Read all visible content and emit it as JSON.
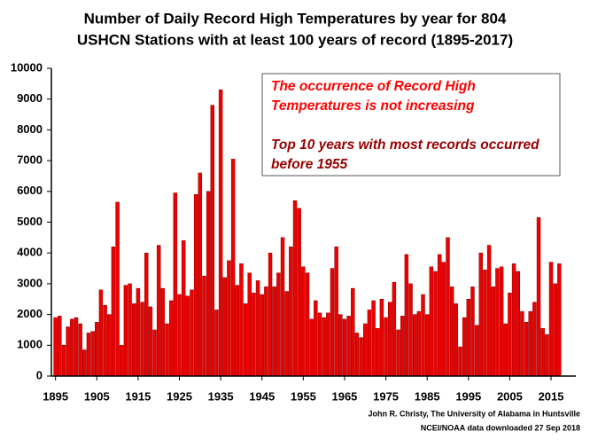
{
  "chart_data": {
    "type": "bar",
    "title": [
      "Number of Daily Record High Temperatures by year for 804",
      "USHCN Stations with at least 100 years of record (1895-2017)"
    ],
    "x": [
      1895,
      1896,
      1897,
      1898,
      1899,
      1900,
      1901,
      1902,
      1903,
      1904,
      1905,
      1906,
      1907,
      1908,
      1909,
      1910,
      1911,
      1912,
      1913,
      1914,
      1915,
      1916,
      1917,
      1918,
      1919,
      1920,
      1921,
      1922,
      1923,
      1924,
      1925,
      1926,
      1927,
      1928,
      1929,
      1930,
      1931,
      1932,
      1933,
      1934,
      1935,
      1936,
      1937,
      1938,
      1939,
      1940,
      1941,
      1942,
      1943,
      1944,
      1945,
      1946,
      1947,
      1948,
      1949,
      1950,
      1951,
      1952,
      1953,
      1954,
      1955,
      1956,
      1957,
      1958,
      1959,
      1960,
      1961,
      1962,
      1963,
      1964,
      1965,
      1966,
      1967,
      1968,
      1969,
      1970,
      1971,
      1972,
      1973,
      1974,
      1975,
      1976,
      1977,
      1978,
      1979,
      1980,
      1981,
      1982,
      1983,
      1984,
      1985,
      1986,
      1987,
      1988,
      1989,
      1990,
      1991,
      1992,
      1993,
      1994,
      1995,
      1996,
      1997,
      1998,
      1999,
      2000,
      2001,
      2002,
      2003,
      2004,
      2005,
      2006,
      2007,
      2008,
      2009,
      2010,
      2011,
      2012,
      2013,
      2014,
      2015,
      2016,
      2017
    ],
    "values": [
      1900,
      1950,
      1000,
      1600,
      1850,
      1900,
      1700,
      850,
      1400,
      1450,
      1750,
      2800,
      2300,
      2000,
      4200,
      5650,
      1000,
      2950,
      3000,
      2350,
      2850,
      2400,
      4000,
      2250,
      1500,
      4250,
      2850,
      1700,
      2450,
      5950,
      2650,
      4400,
      2600,
      2800,
      5900,
      6600,
      3250,
      6000,
      8800,
      2150,
      9300,
      3200,
      3750,
      7050,
      2950,
      3650,
      2350,
      3350,
      2700,
      3100,
      2650,
      2900,
      4000,
      2900,
      3350,
      4500,
      2750,
      4200,
      5700,
      5450,
      3550,
      3350,
      1850,
      2450,
      2050,
      1900,
      2050,
      3500,
      4200,
      2000,
      1850,
      1950,
      2850,
      1400,
      1250,
      1700,
      2150,
      2450,
      1550,
      2500,
      1900,
      2400,
      3050,
      1500,
      1950,
      3950,
      3000,
      2000,
      2100,
      2650,
      2000,
      3550,
      3400,
      3950,
      3700,
      4500,
      2900,
      2350,
      950,
      1900,
      2500,
      2900,
      1650,
      4000,
      3450,
      4250,
      2900,
      3500,
      3550,
      1700,
      2700,
      3650,
      3400,
      2100,
      1750,
      2100,
      2400,
      5150,
      1550,
      1350,
      3700,
      3000,
      3650
    ],
    "color": "#ee0000",
    "xlim": [
      1894,
      2021
    ],
    "xticks": [
      1895,
      1905,
      1915,
      1925,
      1935,
      1945,
      1955,
      1965,
      1975,
      1985,
      1995,
      2005,
      2015
    ],
    "ylim": [
      0,
      10000
    ],
    "yticks": [
      0,
      1000,
      2000,
      3000,
      4000,
      5000,
      6000,
      7000,
      8000,
      9000,
      10000
    ],
    "grid": false,
    "annotations": [
      {
        "lines": [
          "The occurrence of Record High",
          "Temperatures is not increasing"
        ],
        "color": "#ff0000"
      },
      {
        "lines": [
          "Top 10 years with most records occurred",
          "before 1955"
        ],
        "color": "#990000"
      }
    ],
    "source": [
      "John R. Christy, The University of Alabama in Huntsville",
      "NCEI/NOAA data downloaded 27 Sep 2018"
    ]
  }
}
